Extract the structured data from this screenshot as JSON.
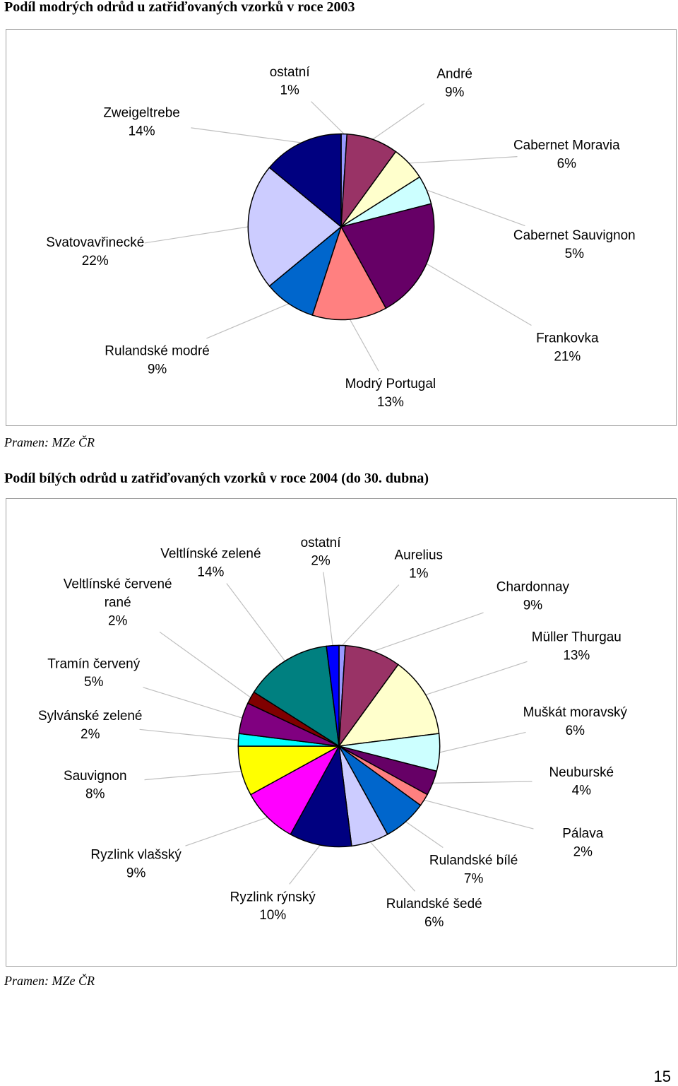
{
  "page_number": "15",
  "chart_data": [
    {
      "type": "pie",
      "title": "Podíl modrých odrůd u zatřiďovaných vzorků v roce 2003",
      "source": "Pramen: MZe ČR",
      "categories": [
        "ostatní",
        "André",
        "Cabernet Moravia",
        "Cabernet Sauvignon",
        "Frankovka",
        "Modrý Portugal",
        "Rulandské modré",
        "Svatovavřinecké",
        "Zweigeltrebe"
      ],
      "values": [
        1,
        9,
        6,
        5,
        21,
        13,
        9,
        22,
        14
      ],
      "labels": [
        "1%",
        "9%",
        "6%",
        "5%",
        "21%",
        "13%",
        "9%",
        "22%",
        "14%"
      ],
      "colors": [
        "#9999ff",
        "#993366",
        "#ffffcc",
        "#ccffff",
        "#660066",
        "#ff8080",
        "#0066cc",
        "#ccccff",
        "#000080"
      ]
    },
    {
      "type": "pie",
      "title": "Podíl bílých odrůd u zatřiďovaných vzorků v roce 2004 (do 30. dubna)",
      "source": "Pramen: MZe ČR",
      "categories": [
        "Aurelius",
        "Chardonnay",
        "Müller Thurgau",
        "Muškát moravský",
        "Neuburské",
        "Pálava",
        "Rulandské bílé",
        "Rulandské šedé",
        "Ryzlink rýnský",
        "Ryzlink vlašský",
        "Sauvignon",
        "Sylvánské zelené",
        "Tramín červený",
        "Veltlínské červené rané",
        "Veltlínské zelené",
        "ostatní"
      ],
      "values": [
        1,
        9,
        13,
        6,
        4,
        2,
        7,
        6,
        10,
        9,
        8,
        2,
        5,
        2,
        14,
        2
      ],
      "labels": [
        "1%",
        "9%",
        "13%",
        "6%",
        "4%",
        "2%",
        "7%",
        "6%",
        "10%",
        "9%",
        "8%",
        "2%",
        "5%",
        "2%",
        "14%",
        "2%"
      ],
      "colors": [
        "#9999ff",
        "#993366",
        "#ffffcc",
        "#ccffff",
        "#660066",
        "#ff8080",
        "#0066cc",
        "#ccccff",
        "#000080",
        "#ff00ff",
        "#ffff00",
        "#00ffff",
        "#800080",
        "#800000",
        "#008080",
        "#0000ff"
      ]
    }
  ]
}
